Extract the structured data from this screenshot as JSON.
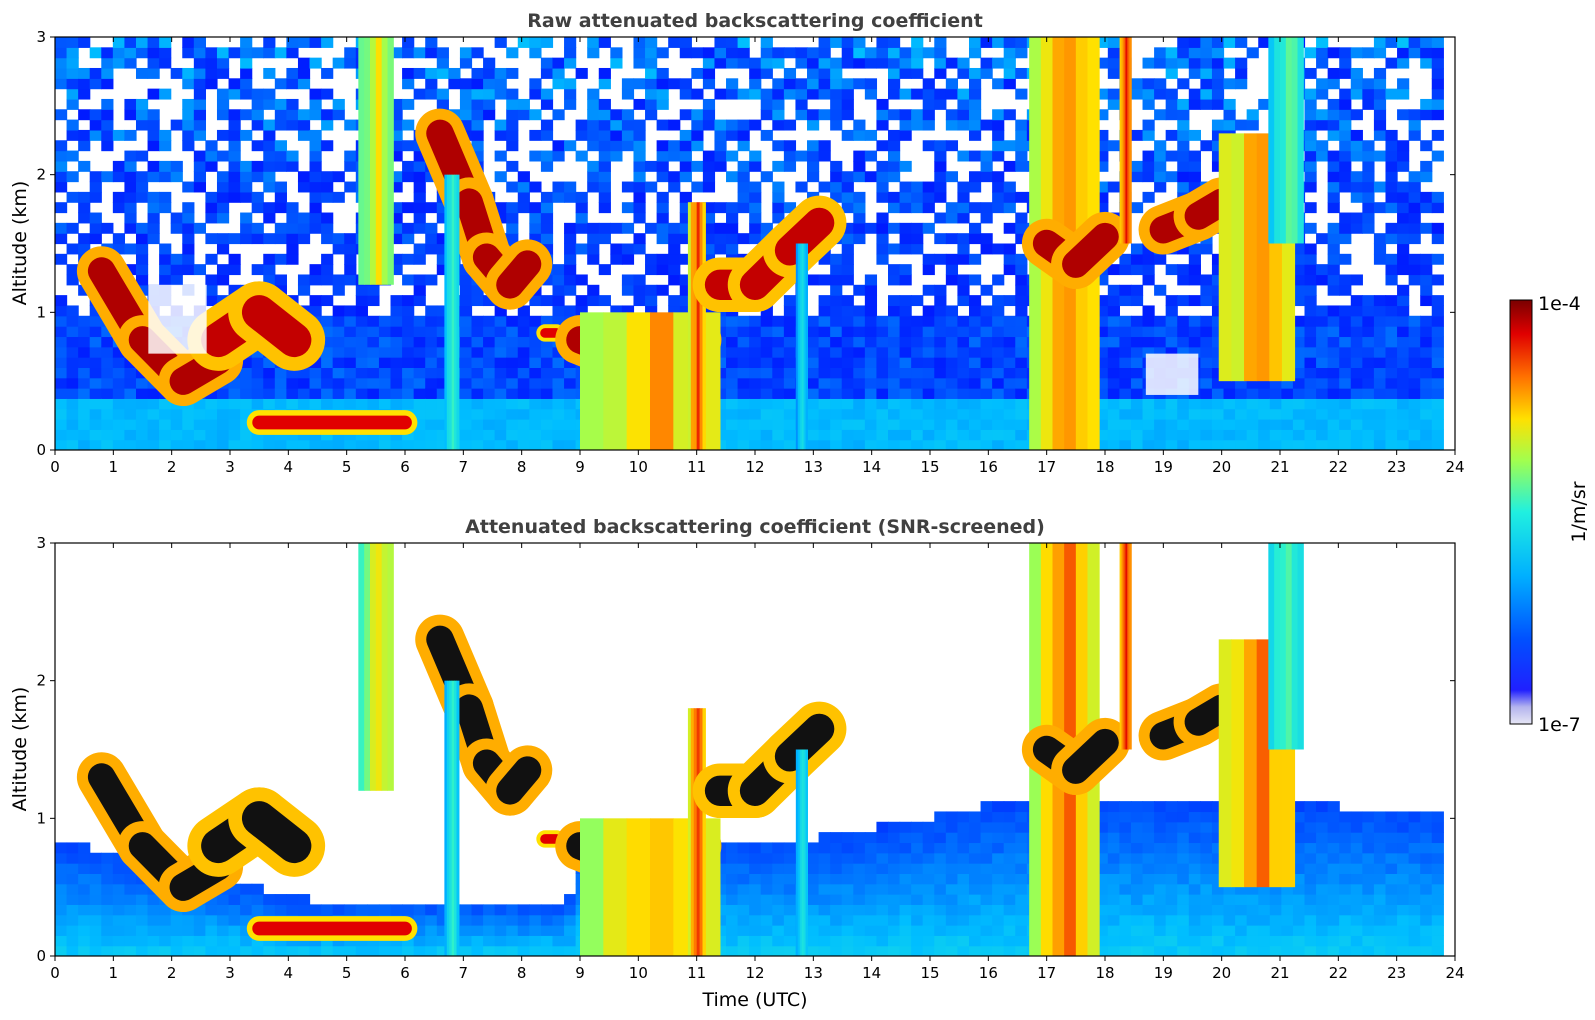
{
  "chart_data": [
    {
      "type": "heatmap",
      "title": "Raw attenuated backscattering coefficient",
      "xlabel": "",
      "ylabel": "Altitude (km)",
      "xlim": [
        0,
        24
      ],
      "ylim": [
        0,
        3
      ],
      "xticks": [
        "0",
        "1",
        "2",
        "3",
        "4",
        "5",
        "6",
        "7",
        "8",
        "9",
        "10",
        "11",
        "12",
        "13",
        "14",
        "15",
        "16",
        "17",
        "18",
        "19",
        "20",
        "21",
        "22",
        "23",
        "24"
      ],
      "yticks": [
        "0",
        "1",
        "2",
        "3"
      ],
      "data_end_hour": 23.8,
      "screened": false,
      "features": [
        {
          "kind": "boundary_layer",
          "x_start": 0,
          "x_end": 23.8,
          "top_km": 0.5,
          "level": 0.3
        },
        {
          "kind": "cloud_layer",
          "path": [
            [
              0.8,
              1.3
            ],
            [
              1.5,
              0.8
            ],
            [
              2.2,
              0.5
            ],
            [
              2.8,
              0.65
            ]
          ],
          "thickness_km": 0.2,
          "level": 0.95
        },
        {
          "kind": "cloud_layer",
          "path": [
            [
              2.8,
              0.8
            ],
            [
              3.5,
              1.0
            ],
            [
              4.1,
              0.8
            ]
          ],
          "thickness_km": 0.25,
          "level": 0.93
        },
        {
          "kind": "aerosol_streak",
          "path": [
            [
              3.5,
              0.2
            ],
            [
              6.0,
              0.2
            ]
          ],
          "thickness_km": 0.1,
          "level": 0.9
        },
        {
          "kind": "precipitation_column",
          "x": 5.5,
          "width_h": 0.6,
          "from_km": 1.2,
          "to_km": 3.0,
          "level": 0.7
        },
        {
          "kind": "cloud_layer",
          "path": [
            [
              6.6,
              2.3
            ],
            [
              7.1,
              1.8
            ],
            [
              7.4,
              1.4
            ],
            [
              7.8,
              1.2
            ],
            [
              8.1,
              1.35
            ]
          ],
          "thickness_km": 0.2,
          "level": 0.95
        },
        {
          "kind": "cloud_layer",
          "path": [
            [
              8.4,
              0.85
            ],
            [
              8.6,
              0.85
            ]
          ],
          "thickness_km": 0.07,
          "level": 0.9
        },
        {
          "kind": "precipitation_column",
          "x": 6.8,
          "width_h": 0.25,
          "from_km": 0.0,
          "to_km": 2.0,
          "level": 0.5
        },
        {
          "kind": "cloud_layer",
          "path": [
            [
              9.0,
              0.8
            ],
            [
              9.6,
              0.7
            ],
            [
              10.2,
              0.45
            ],
            [
              10.7,
              0.3
            ],
            [
              11.0,
              0.8
            ]
          ],
          "thickness_km": 0.2,
          "level": 0.95
        },
        {
          "kind": "precipitation_column",
          "x": 10.2,
          "width_h": 2.4,
          "from_km": 0.0,
          "to_km": 1.0,
          "level": 0.75
        },
        {
          "kind": "precipitation_column",
          "x": 11.0,
          "width_h": 0.3,
          "from_km": 0.0,
          "to_km": 1.8,
          "level": 0.85
        },
        {
          "kind": "cloud_layer",
          "path": [
            [
              11.4,
              1.2
            ],
            [
              12.0,
              1.2
            ],
            [
              12.6,
              1.45
            ],
            [
              13.1,
              1.65
            ]
          ],
          "thickness_km": 0.22,
          "level": 0.93
        },
        {
          "kind": "precipitation_column",
          "x": 12.8,
          "width_h": 0.2,
          "from_km": 0.0,
          "to_km": 1.5,
          "level": 0.45
        },
        {
          "kind": "precipitation_column",
          "x": 17.3,
          "width_h": 1.2,
          "from_km": 0.0,
          "to_km": 3.0,
          "level": 0.8
        },
        {
          "kind": "cloud_layer",
          "path": [
            [
              17.0,
              1.5
            ],
            [
              17.5,
              1.35
            ],
            [
              18.0,
              1.55
            ]
          ],
          "thickness_km": 0.2,
          "level": 0.95
        },
        {
          "kind": "precipitation_column",
          "x": 18.35,
          "width_h": 0.2,
          "from_km": 1.5,
          "to_km": 3.0,
          "level": 0.9
        },
        {
          "kind": "cloud_layer",
          "path": [
            [
              19.0,
              1.6
            ],
            [
              19.6,
              1.7
            ],
            [
              20.0,
              1.8
            ]
          ],
          "thickness_km": 0.2,
          "level": 0.95
        },
        {
          "kind": "precipitation_column",
          "x": 20.6,
          "width_h": 1.3,
          "from_km": 0.5,
          "to_km": 2.3,
          "level": 0.8
        },
        {
          "kind": "precipitation_column",
          "x": 21.1,
          "width_h": 0.6,
          "from_km": 1.5,
          "to_km": 3.0,
          "level": 0.55
        },
        {
          "kind": "clear_gap",
          "x_start": 1.6,
          "x_end": 2.6,
          "from_km": 0.7,
          "to_km": 1.2
        },
        {
          "kind": "clear_gap",
          "x_start": 18.7,
          "x_end": 19.6,
          "from_km": 0.4,
          "to_km": 0.7
        }
      ]
    },
    {
      "type": "heatmap",
      "title": "Attenuated backscattering coefficient (SNR-screened)",
      "xlabel": "Time (UTC)",
      "ylabel": "Altitude (km)",
      "xlim": [
        0,
        24
      ],
      "ylim": [
        0,
        3
      ],
      "xticks": [
        "0",
        "1",
        "2",
        "3",
        "4",
        "5",
        "6",
        "7",
        "8",
        "9",
        "10",
        "11",
        "12",
        "13",
        "14",
        "15",
        "16",
        "17",
        "18",
        "19",
        "20",
        "21",
        "22",
        "23",
        "24"
      ],
      "yticks": [
        "0",
        "1",
        "2",
        "3"
      ],
      "data_end_hour": 23.8,
      "screened": true,
      "boundary_layer_tops_km": [
        [
          0,
          0.85
        ],
        [
          4.4,
          0.4
        ],
        [
          8.8,
          0.4
        ],
        [
          9.0,
          0.85
        ],
        [
          13.0,
          0.85
        ],
        [
          15.0,
          1.0
        ],
        [
          16.0,
          1.1
        ],
        [
          19.0,
          1.15
        ],
        [
          23.8,
          1.05
        ]
      ],
      "features": "same as panel 1, values above 1e-4 shown in black"
    }
  ],
  "colorbar": {
    "label": "1/m/sr",
    "max_label": "1e-4",
    "min_label": "1e-7",
    "scale": "log",
    "colormap": [
      "#dcdcf0",
      "#0000ff",
      "#0070ff",
      "#00c8ff",
      "#40ffc0",
      "#c0ff40",
      "#ffd000",
      "#ff6000",
      "#e00000",
      "#800000"
    ]
  }
}
